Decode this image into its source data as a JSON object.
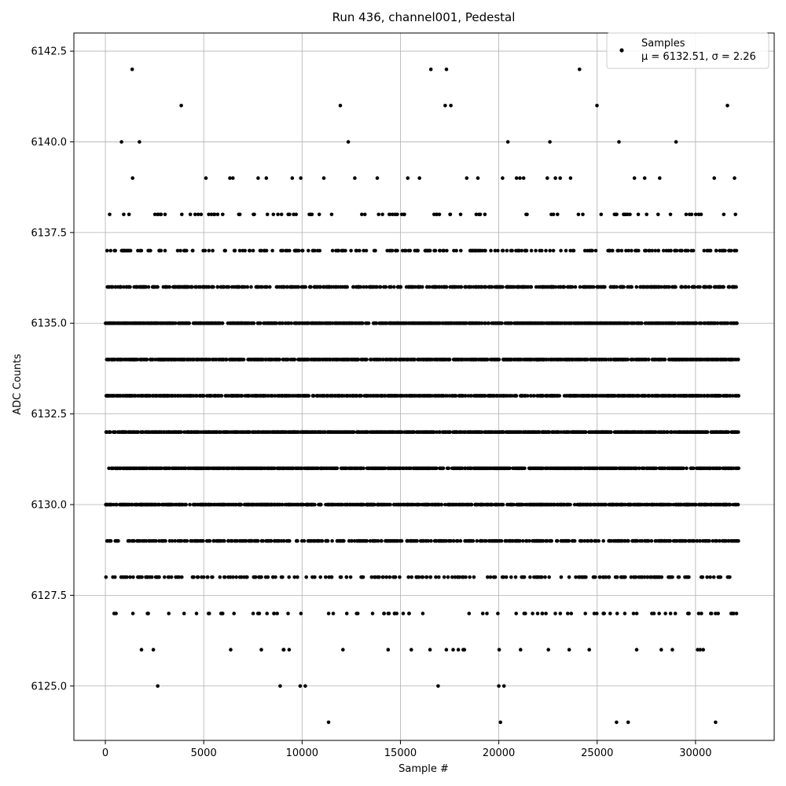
{
  "chart_data": {
    "type": "scatter",
    "title": "Run 436, channel001, Pedestal",
    "xlabel": "Sample #",
    "ylabel": "ADC Counts",
    "xlim": [
      -1600,
      34000
    ],
    "ylim": [
      6123.5,
      6143.0
    ],
    "xticks": [
      0,
      5000,
      10000,
      15000,
      20000,
      25000,
      30000
    ],
    "yticks": [
      6125.0,
      6127.5,
      6130.0,
      6132.5,
      6135.0,
      6137.5,
      6140.0,
      6142.5
    ],
    "xtick_labels": [
      "0",
      "5000",
      "10000",
      "15000",
      "20000",
      "25000",
      "30000"
    ],
    "ytick_labels": [
      "6125.0",
      "6127.5",
      "6130.0",
      "6132.5",
      "6135.0",
      "6137.5",
      "6140.0",
      "6142.5"
    ],
    "grid": true,
    "legend_position": "top-right",
    "n_samples": 32200,
    "marker_color": "#000000",
    "series": [
      {
        "name": "Samples",
        "legend_label": "μ = 6132.51, σ = 2.26",
        "mean": 6132.51,
        "std": 2.26,
        "levels": [
          6124,
          6125,
          6126,
          6127,
          6128,
          6129,
          6130,
          6131,
          6132,
          6133,
          6134,
          6135,
          6136,
          6137,
          6138,
          6139,
          6140,
          6141,
          6142
        ]
      }
    ]
  }
}
